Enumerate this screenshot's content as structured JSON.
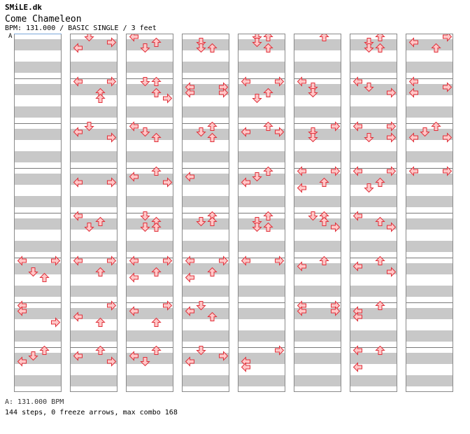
{
  "header": {
    "site": "SMiLE.dk",
    "song_title": "Come Chameleon",
    "info": "BPM: 131.000 / BASIC SINGLE / 3 feet",
    "bpm_marker": "A"
  },
  "footer": {
    "bpm_line": "A: 131.000 BPM",
    "stats_line": "144 steps, 0 freeze arrows, max combo 168"
  },
  "colors": {
    "arrow_fill": "#ffc8c8",
    "arrow_stroke": "#e0303a",
    "stripe": "#c8c8c8",
    "measure_line": "#7a7a7a"
  },
  "chart": {
    "columns_count": 8,
    "measures_per_column": 8,
    "rows_per_measure": 8,
    "panels": [
      "left",
      "down",
      "up",
      "right"
    ],
    "note_icons": {
      "left": "left-arrow-icon",
      "down": "down-arrow-icon",
      "up": "up-arrow-icon",
      "right": "right-arrow-icon"
    },
    "notes": [
      [
        [],
        [],
        [],
        [],
        [],
        [
          [
            "left",
            0
          ],
          [
            "right",
            0
          ],
          [
            "down",
            2
          ],
          [
            "up",
            3
          ]
        ],
        [
          [
            "left",
            0
          ],
          [
            "left",
            1
          ],
          [
            "right",
            3
          ]
        ],
        [
          [
            "up",
            0
          ],
          [
            "down",
            1
          ],
          [
            "left",
            2
          ]
        ]
      ],
      [
        [
          [
            "down",
            0
          ],
          [
            "right",
            1
          ],
          [
            "left",
            2
          ]
        ],
        [
          [
            "left",
            0
          ],
          [
            "right",
            0
          ],
          [
            "up",
            2
          ],
          [
            "up",
            3
          ]
        ],
        [
          [
            "down",
            0
          ],
          [
            "left",
            1
          ],
          [
            "right",
            2
          ]
        ],
        [
          [
            "left",
            2
          ],
          [
            "right",
            2
          ]
        ],
        [
          [
            "left",
            0
          ],
          [
            "up",
            1
          ],
          [
            "down",
            2
          ]
        ],
        [
          [
            "left",
            0
          ],
          [
            "right",
            0
          ],
          [
            "up",
            2
          ]
        ],
        [
          [
            "right",
            0
          ],
          [
            "left",
            2
          ],
          [
            "up",
            3
          ]
        ],
        [
          [
            "up",
            0
          ],
          [
            "left",
            1
          ],
          [
            "right",
            2
          ]
        ]
      ],
      [
        [
          [
            "left",
            0
          ],
          [
            "up",
            1
          ],
          [
            "down",
            2
          ]
        ],
        [
          [
            "down",
            0
          ],
          [
            "up",
            0
          ],
          [
            "up",
            2
          ],
          [
            "right",
            3
          ]
        ],
        [
          [
            "left",
            0
          ],
          [
            "down",
            1
          ],
          [
            "up",
            2
          ]
        ],
        [
          [
            "up",
            0
          ],
          [
            "left",
            1
          ],
          [
            "right",
            2
          ]
        ],
        [
          [
            "down",
            0
          ],
          [
            "up",
            1
          ],
          [
            "down",
            2
          ],
          [
            "up",
            2
          ]
        ],
        [
          [
            "left",
            0
          ],
          [
            "right",
            0
          ],
          [
            "up",
            2
          ],
          [
            "left",
            3
          ]
        ],
        [
          [
            "right",
            0
          ],
          [
            "left",
            1
          ],
          [
            "up",
            3
          ]
        ],
        [
          [
            "up",
            0
          ],
          [
            "left",
            1
          ],
          [
            "down",
            2
          ]
        ]
      ],
      [
        [
          [
            "down",
            1
          ],
          [
            "down",
            2
          ],
          [
            "up",
            2
          ]
        ],
        [
          [
            "left",
            1
          ],
          [
            "right",
            1
          ],
          [
            "left",
            2
          ],
          [
            "right",
            2
          ]
        ],
        [
          [
            "up",
            0
          ],
          [
            "down",
            1
          ],
          [
            "up",
            2
          ]
        ],
        [
          [
            "left",
            1
          ]
        ],
        [
          [
            "up",
            0
          ],
          [
            "down",
            1
          ],
          [
            "up",
            1
          ]
        ],
        [
          [
            "left",
            0
          ],
          [
            "right",
            0
          ],
          [
            "up",
            2
          ],
          [
            "left",
            3
          ]
        ],
        [
          [
            "down",
            0
          ],
          [
            "left",
            1
          ],
          [
            "up",
            2
          ]
        ],
        [
          [
            "down",
            0
          ],
          [
            "left",
            2
          ],
          [
            "right",
            1
          ]
        ]
      ],
      [
        [
          [
            "down",
            0
          ],
          [
            "up",
            0
          ],
          [
            "down",
            1
          ],
          [
            "up",
            2
          ]
        ],
        [
          [
            "left",
            0
          ],
          [
            "right",
            0
          ],
          [
            "up",
            2
          ],
          [
            "down",
            3
          ]
        ],
        [
          [
            "up",
            0
          ],
          [
            "left",
            1
          ],
          [
            "right",
            1
          ]
        ],
        [
          [
            "up",
            0
          ],
          [
            "down",
            1
          ],
          [
            "left",
            2
          ]
        ],
        [
          [
            "up",
            0
          ],
          [
            "down",
            1
          ],
          [
            "up",
            2
          ],
          [
            "down",
            2
          ]
        ],
        [
          [
            "left",
            0
          ],
          [
            "right",
            0
          ]
        ],
        [],
        [
          [
            "right",
            0
          ],
          [
            "left",
            2
          ],
          [
            "left",
            3
          ]
        ]
      ],
      [
        [
          [
            "up",
            0
          ]
        ],
        [
          [
            "left",
            0
          ],
          [
            "down",
            1
          ],
          [
            "down",
            2
          ]
        ],
        [
          [
            "right",
            0
          ],
          [
            "down",
            1
          ],
          [
            "down",
            2
          ]
        ],
        [
          [
            "left",
            0
          ],
          [
            "right",
            0
          ],
          [
            "up",
            2
          ],
          [
            "left",
            3
          ]
        ],
        [
          [
            "down",
            0
          ],
          [
            "up",
            0
          ],
          [
            "up",
            1
          ],
          [
            "right",
            2
          ]
        ],
        [
          [
            "up",
            0
          ],
          [
            "left",
            1
          ]
        ],
        [
          [
            "left",
            0
          ],
          [
            "right",
            0
          ],
          [
            "left",
            1
          ],
          [
            "right",
            1
          ]
        ],
        []
      ],
      [
        [
          [
            "up",
            0
          ],
          [
            "down",
            1
          ],
          [
            "down",
            2
          ],
          [
            "up",
            2
          ]
        ],
        [
          [
            "left",
            0
          ],
          [
            "down",
            1
          ],
          [
            "right",
            2
          ]
        ],
        [
          [
            "left",
            0
          ],
          [
            "right",
            0
          ],
          [
            "down",
            2
          ],
          [
            "right",
            2
          ]
        ],
        [
          [
            "left",
            0
          ],
          [
            "right",
            0
          ],
          [
            "up",
            2
          ],
          [
            "down",
            3
          ]
        ],
        [
          [
            "left",
            0
          ],
          [
            "up",
            1
          ],
          [
            "right",
            2
          ]
        ],
        [
          [
            "up",
            0
          ],
          [
            "left",
            1
          ],
          [
            "right",
            2
          ]
        ],
        [
          [
            "up",
            0
          ],
          [
            "left",
            1
          ],
          [
            "left",
            2
          ]
        ],
        [
          [
            "left",
            0
          ],
          [
            "up",
            0
          ],
          [
            "left",
            3
          ]
        ]
      ],
      [
        [
          [
            "right",
            0
          ],
          [
            "left",
            1
          ],
          [
            "up",
            2
          ]
        ],
        [
          [
            "left",
            0
          ],
          [
            "right",
            1
          ],
          [
            "left",
            2
          ]
        ],
        [
          [
            "up",
            0
          ],
          [
            "down",
            1
          ],
          [
            "left",
            2
          ],
          [
            "right",
            2
          ]
        ],
        [
          [
            "left",
            0
          ],
          [
            "right",
            0
          ]
        ],
        [],
        [],
        [],
        []
      ]
    ]
  }
}
